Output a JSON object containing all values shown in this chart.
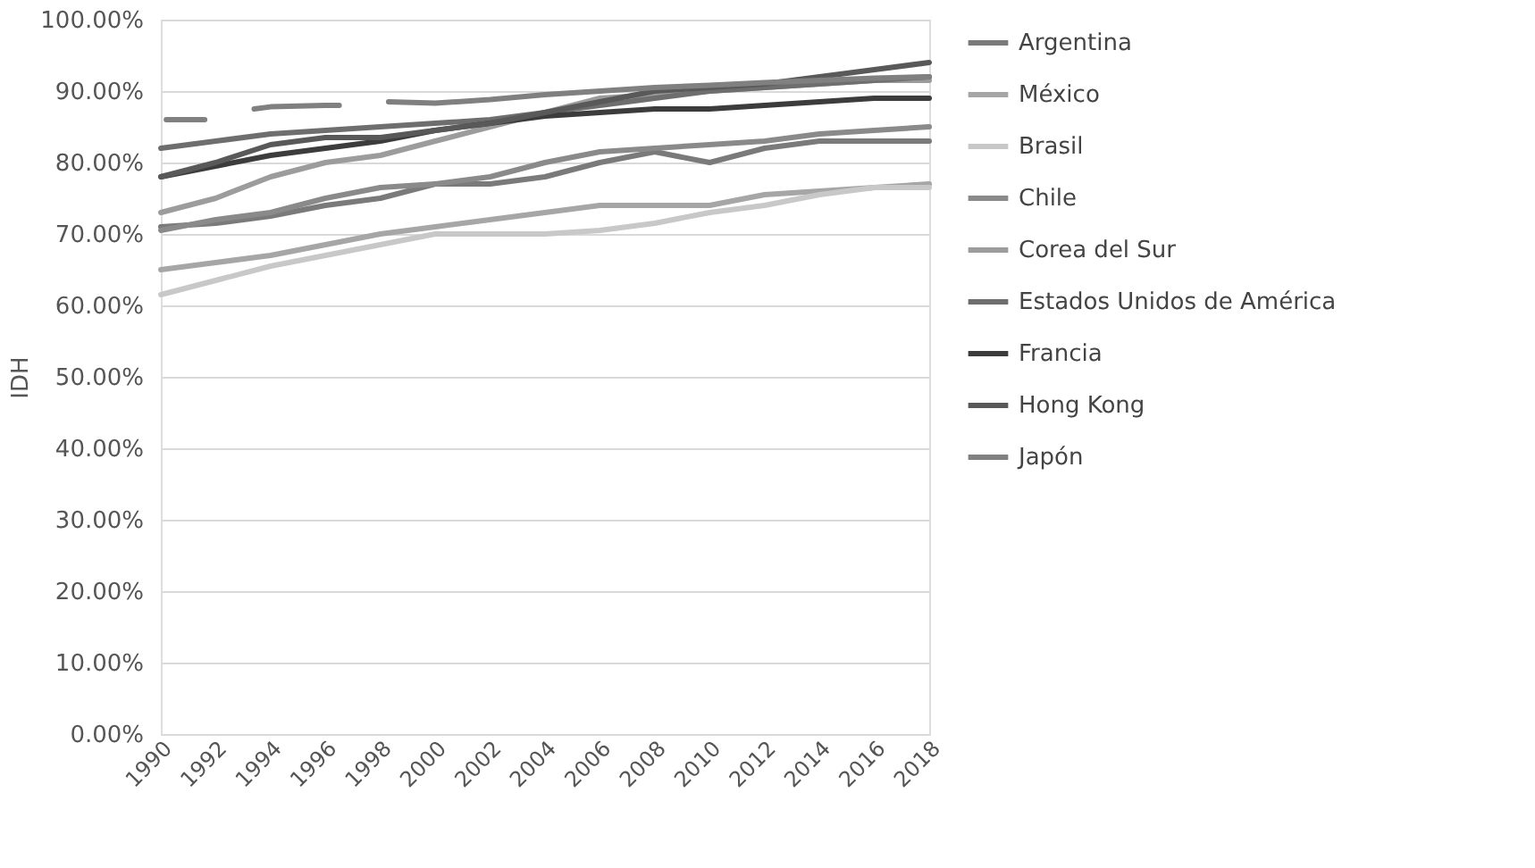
{
  "chart_data": {
    "type": "line",
    "ylabel": "IDH",
    "x": [
      1990,
      1992,
      1994,
      1996,
      1998,
      2000,
      2002,
      2004,
      2006,
      2008,
      2010,
      2012,
      2014,
      2016,
      2018
    ],
    "xlim": [
      1990,
      2018
    ],
    "xticks": [
      1990,
      1992,
      1994,
      1996,
      1998,
      2000,
      2002,
      2004,
      2006,
      2008,
      2010,
      2012,
      2014,
      2016,
      2018
    ],
    "ylim": [
      0,
      100
    ],
    "yticks": [
      {
        "value": 0,
        "label": "0.00%"
      },
      {
        "value": 10,
        "label": "10.00%"
      },
      {
        "value": 20,
        "label": "20.00%"
      },
      {
        "value": 30,
        "label": "30.00%"
      },
      {
        "value": 40,
        "label": "40.00%"
      },
      {
        "value": 50,
        "label": "50.00%"
      },
      {
        "value": 60,
        "label": "60.00%"
      },
      {
        "value": 70,
        "label": "70.00%"
      },
      {
        "value": 80,
        "label": "80.00%"
      },
      {
        "value": 90,
        "label": "90.00%"
      },
      {
        "value": 100,
        "label": "100.00%"
      }
    ],
    "grid": "y",
    "legend": "right",
    "marker": "none",
    "line_style": "solid",
    "series": [
      {
        "name": " Argentina",
        "color": "#7a7a7a",
        "values": [
          71,
          71.5,
          72.5,
          74,
          75,
          77,
          77,
          78,
          80,
          81.5,
          80,
          82,
          83,
          83,
          83
        ]
      },
      {
        "name": "México",
        "color": "#a6a6a6",
        "values": [
          65,
          66,
          67,
          68.5,
          70,
          71,
          72,
          73,
          74,
          74,
          74,
          75.5,
          76,
          76.5,
          77
        ]
      },
      {
        "name": "Brasil",
        "color": "#c8c8c8",
        "values": [
          61.5,
          63.5,
          65.5,
          67,
          68.5,
          70,
          70,
          70,
          70.5,
          71.5,
          73,
          74,
          75.5,
          76.5,
          76.5
        ]
      },
      {
        "name": "Chile",
        "color": "#8a8a8a",
        "values": [
          70.5,
          72,
          73,
          75,
          76.5,
          77,
          78,
          80,
          81.5,
          82,
          82.5,
          83,
          84,
          84.5,
          85
        ]
      },
      {
        "name": "Corea del Sur",
        "color": "#9c9c9c",
        "values": [
          73,
          75,
          78,
          80,
          81,
          83,
          85,
          87,
          89,
          89.5,
          90,
          90.5,
          91,
          91.5,
          91.5
        ]
      },
      {
        "name": "Estados Unidos de América",
        "color": "#6e6e6e",
        "values": [
          82,
          83,
          84,
          84.5,
          85,
          85.5,
          86,
          87,
          88,
          89,
          90,
          90.5,
          91,
          91.5,
          92
        ]
      },
      {
        "name": "Francia",
        "color": "#3c3c3c",
        "values": [
          78,
          79.5,
          81,
          82,
          83,
          84.5,
          85.5,
          86.5,
          87,
          87.5,
          87.5,
          88,
          88.5,
          89,
          89
        ]
      },
      {
        "name": "Hong Kong",
        "color": "#595959",
        "values": [
          78,
          80,
          82.5,
          83.5,
          83.5,
          84.5,
          85.5,
          87,
          88.5,
          90,
          90.5,
          91,
          92,
          93,
          94
        ]
      },
      {
        "name": "Japón",
        "color": "#808080",
        "x": [
          1990.2,
          1991.6,
          1992.5,
          1993.4,
          1994,
          1996,
          1996.5,
          1997.4,
          1998.3,
          2000,
          2002,
          2004,
          2006,
          2008,
          2010,
          2012,
          2014,
          2016,
          2018
        ],
        "values": [
          86,
          86,
          null,
          87.5,
          87.8,
          88,
          88,
          null,
          88.5,
          88.3,
          88.8,
          89.5,
          90,
          90.5,
          90.8,
          91.2,
          91.5,
          91.8,
          92
        ]
      }
    ]
  }
}
